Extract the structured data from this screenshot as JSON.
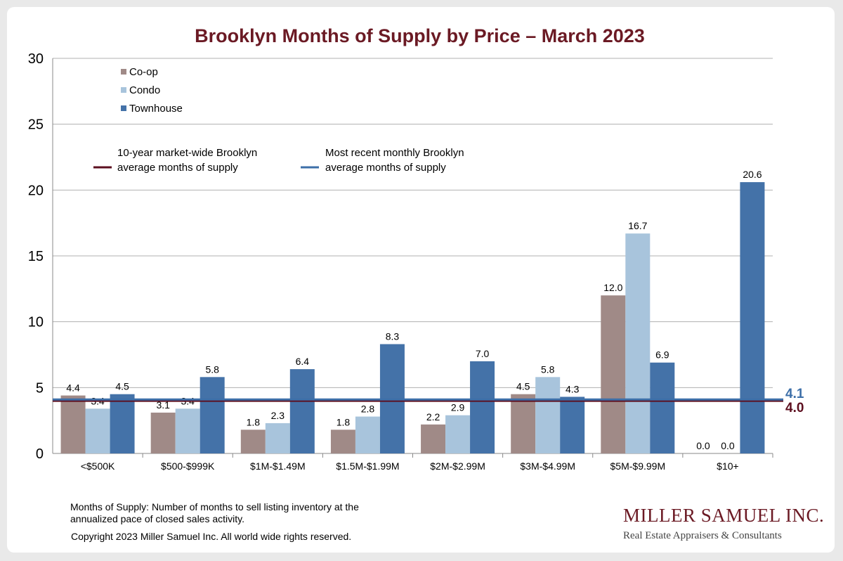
{
  "chart_data": {
    "type": "bar",
    "title": "Brooklyn Months of Supply by Price – March 2023",
    "categories": [
      "<$500K",
      "$500-$999K",
      "$1M-$1.49M",
      "$1.5M-$1.99M",
      "$2M-$2.99M",
      "$3M-$4.99M",
      "$5M-$9.99M",
      "$10+"
    ],
    "series": [
      {
        "name": "Co-op",
        "color": "#a08a87",
        "values": [
          4.4,
          3.1,
          1.8,
          1.8,
          2.2,
          4.5,
          12.0,
          0.0
        ],
        "labels": [
          "4.4",
          "3.1",
          "1.8",
          "1.8",
          "2.2",
          "4.5",
          "12.0",
          "0.0"
        ]
      },
      {
        "name": "Condo",
        "color": "#a8c4dc",
        "values": [
          3.4,
          3.4,
          2.3,
          2.8,
          2.9,
          5.8,
          16.7,
          0.0
        ],
        "labels": [
          "3.4",
          "3.4",
          "2.3",
          "2.8",
          "2.9",
          "5.8",
          "16.7",
          "0.0"
        ]
      },
      {
        "name": "Townhouse",
        "color": "#4472a8",
        "values": [
          4.5,
          5.8,
          6.4,
          8.3,
          7.0,
          4.3,
          6.9,
          20.6
        ],
        "labels": [
          "4.5",
          "5.8",
          "6.4",
          "8.3",
          "7.0",
          "4.3",
          "6.9",
          "20.6"
        ]
      }
    ],
    "yticks": [
      "0",
      "5",
      "10",
      "15",
      "20",
      "25",
      "30"
    ],
    "ylim": [
      0,
      30
    ],
    "grid": true,
    "legend_position": "top-left",
    "reference_lines": [
      {
        "legend_text": "10-year market-wide Brooklyn average months of supply",
        "legend_line1": "10-year market-wide Brooklyn",
        "legend_line2": "average months of supply",
        "value": 4.0,
        "label": "4.0",
        "color": "#5c0f1f"
      },
      {
        "legend_text": "Most recent monthly Brooklyn average months of supply",
        "legend_line1": "Most recent monthly Brooklyn",
        "legend_line2": "average months of supply",
        "value": 4.1,
        "label": "4.1",
        "color": "#3d6fa8"
      }
    ]
  },
  "footnote": "Months of Supply: Number of months to sell listing inventory at the annualized pace of closed sales activity.",
  "copyright": "Copyright 2023 Miller Samuel Inc.  All world wide rights reserved.",
  "brand": {
    "name": "MILLER SAMUEL INC.",
    "tagline": "Real Estate Appraisers & Consultants"
  },
  "colors": {
    "title": "#6b1a24",
    "grid": "#b0b0b0"
  }
}
